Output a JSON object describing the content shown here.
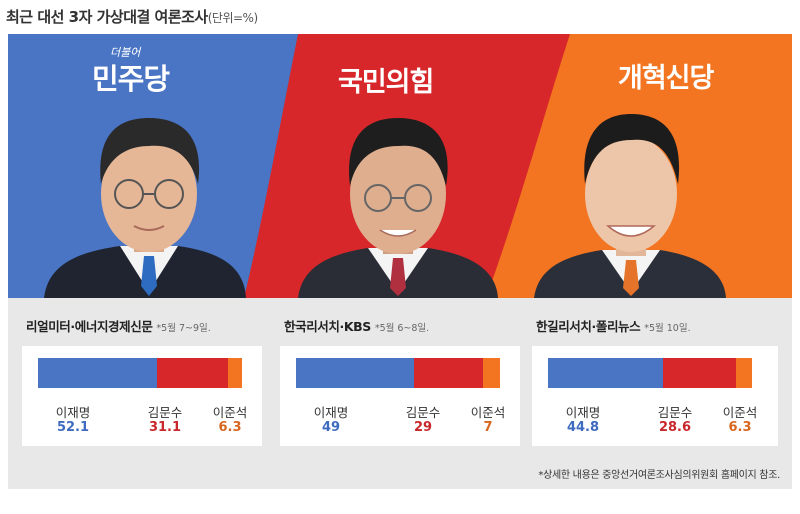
{
  "title": "최근 대선 3자 가상대결 여론조사",
  "unit": "(단위=%)",
  "parties": [
    {
      "name": "민주당",
      "tag": "더불어",
      "color": "#4a75c4"
    },
    {
      "name": "국민의힘",
      "tag": "",
      "color": "#d7272a"
    },
    {
      "name": "개혁신당",
      "tag": "",
      "color": "#f37521"
    }
  ],
  "note": "*상세한 내용은 중앙선거여론조사심의위원회 홈페이지 참조.",
  "chart_data": {
    "type": "bar",
    "stacked": true,
    "categories": [
      "이재명",
      "김문수",
      "이준석"
    ],
    "colors": [
      "#4a75c4",
      "#d7272a",
      "#f37521"
    ],
    "polls": [
      {
        "source": "리얼미터·에너지경제신문",
        "date": "*5월 7~9일.",
        "values": [
          52.1,
          31.1,
          6.3
        ],
        "labels": [
          "52.1",
          "31.1",
          "6.3"
        ]
      },
      {
        "source": "한국리서치·KBS",
        "date": "*5월 6~8일.",
        "values": [
          49,
          29,
          7
        ],
        "labels": [
          "49",
          "29",
          "7"
        ]
      },
      {
        "source": "한길리서치·폴리뉴스",
        "date": "*5월 10일.",
        "values": [
          44.8,
          28.6,
          6.3
        ],
        "labels": [
          "44.8",
          "28.6",
          "6.3"
        ]
      }
    ]
  }
}
